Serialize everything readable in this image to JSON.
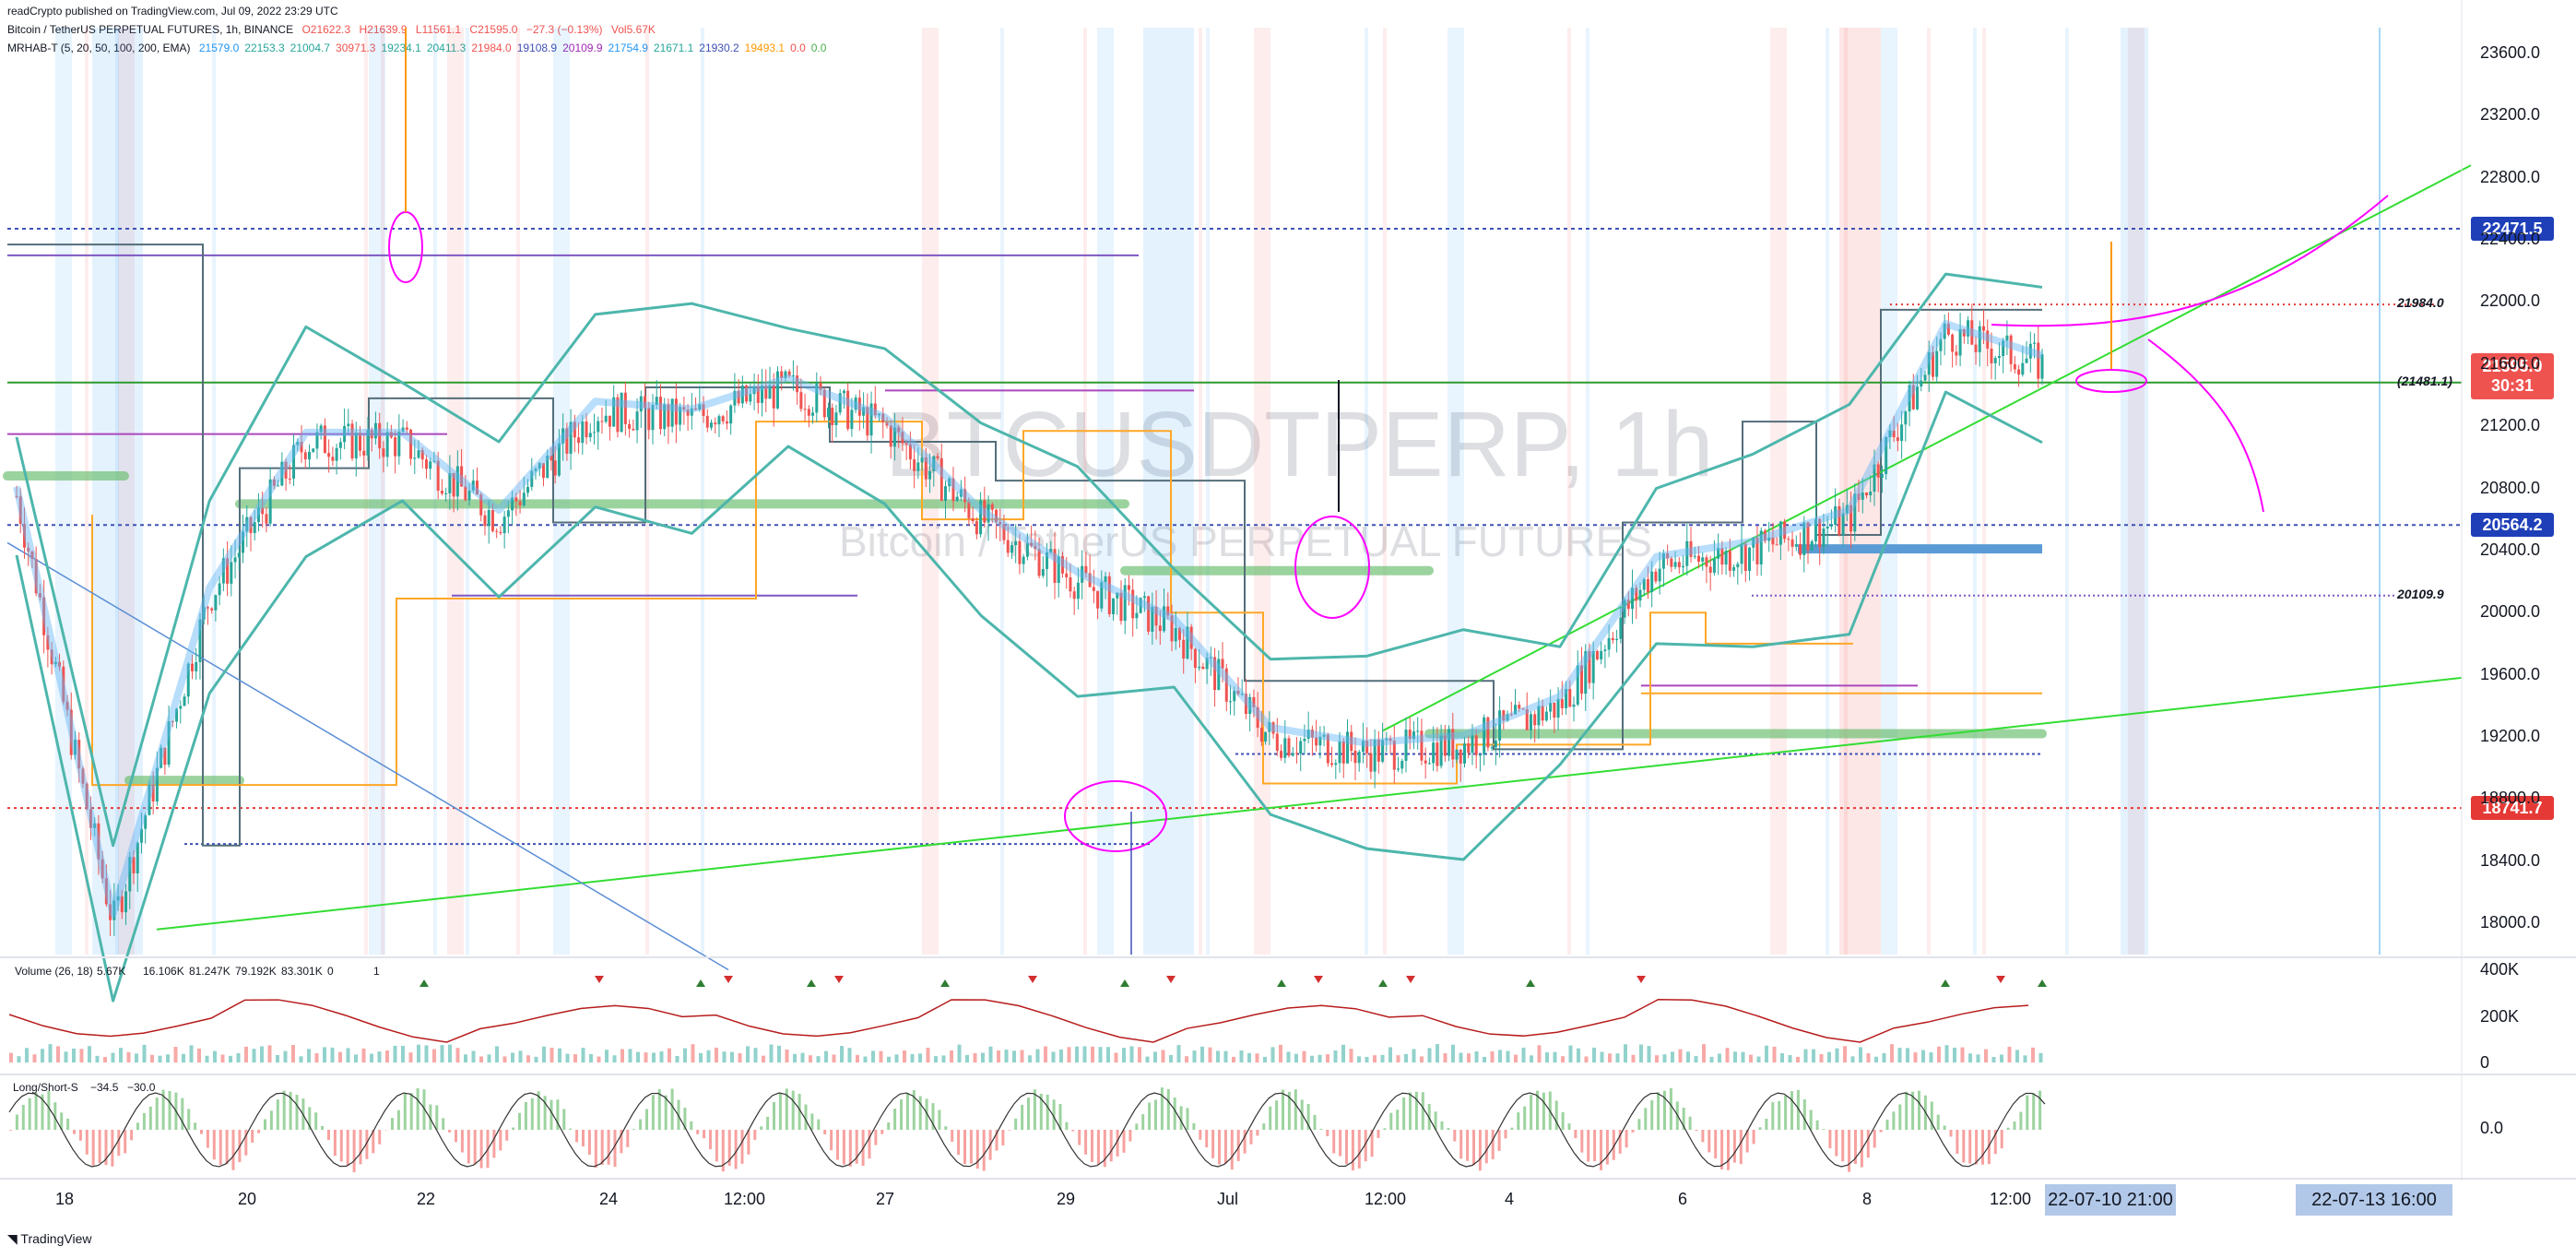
{
  "header": {
    "publisher_line": "readCrypto published on TradingView.com, Jul 09, 2022 23:29 UTC",
    "symbol_line": "Bitcoin / TetherUS PERPETUAL FUTURES, 1h, BINANCE",
    "ohlc": {
      "open": "O21622.3",
      "high": "H21639.9",
      "low": "L11561.1",
      "close": "C21595.0",
      "change": "−27.3 (−0.13%)",
      "volume": "Vol5.67K"
    },
    "mrhab_label": "MRHAB-T (5, 20, 50, 100, 200, EMA)",
    "mrhab_values": [
      "21579.0",
      "22153.3",
      "21004.7",
      "30971.3",
      "19234.1",
      "20411.3",
      "21984.0",
      "19108.9",
      "20109.9",
      "21754.9",
      "21671.1",
      "21930.2",
      "19493.1",
      "0.0",
      "0.0"
    ]
  },
  "watermark": {
    "symbol": "BTCUSDTPERP, 1h",
    "name": "Bitcoin / TetherUS PERPETUAL FUTURES"
  },
  "price_axis": {
    "ticks": [
      "23600.0",
      "23200.0",
      "22800.0",
      "22400.0",
      "22000.0",
      "21600.0",
      "21200.0",
      "20800.0",
      "20400.0",
      "20000.0",
      "19600.0",
      "19200.0",
      "18800.0",
      "18400.0",
      "18000.0"
    ],
    "tags": [
      {
        "label": "22471.5",
        "value": 22471.5,
        "color": "#1e3fb8"
      },
      {
        "label": "21595.0",
        "sub": "30:31",
        "value": 21595.0,
        "color": "#ef5350"
      },
      {
        "label": "20564.2",
        "value": 20564.2,
        "color": "#1e3fb8"
      },
      {
        "label": "18741.7",
        "value": 18741.7,
        "color": "#e53935"
      }
    ],
    "line_labels": [
      {
        "label": "21984.0",
        "value": 21984.0
      },
      {
        "label": "20109.9",
        "value": 20109.9
      },
      {
        "label": "(21481.1)",
        "value": 21481.1
      }
    ]
  },
  "time_axis": {
    "ticks": [
      "18",
      "20",
      "22",
      "24",
      "12:00",
      "27",
      "29",
      "Jul",
      "12:00",
      "4",
      "6",
      "8",
      "12:00"
    ],
    "chips": [
      "22-07-10   21:00",
      "22-07-13   16:00"
    ]
  },
  "volume_pane": {
    "label": "Volume (26, 18)",
    "values_label": [
      "5.67K",
      "16.106K",
      "81.247K",
      "79.192K",
      "83.301K",
      "0",
      "1"
    ],
    "ticks": [
      "400K",
      "200K",
      "0"
    ]
  },
  "ls_pane": {
    "label": "Long/Short-S",
    "values_label": [
      "−34.5",
      "−30.0"
    ],
    "ticks": [
      "0.0"
    ]
  },
  "footer": {
    "logo": "TradingView"
  },
  "colors": {
    "up": "#26a69a",
    "down": "#ef5350",
    "bollinger": "#4db6ac",
    "trend": "#33dd33",
    "annotation": "#ff00ff",
    "level_blue": "#3f51b5",
    "level_red": "#e53935",
    "level_purple": "#7e57c2"
  },
  "chart_data": {
    "type": "line",
    "title": "BTCUSDTPERP, 1h",
    "xlabel": "",
    "ylabel": "",
    "ylim": [
      17800,
      23800
    ],
    "x": [
      "18",
      "19",
      "20",
      "21",
      "22",
      "23",
      "24",
      "25",
      "26",
      "27",
      "28",
      "29",
      "30",
      "Jul 1",
      "2",
      "3",
      "4",
      "5",
      "6",
      "7",
      "8",
      "9"
    ],
    "series": [
      {
        "name": "",
        "values": [
          20750,
          18000,
          20100,
          21100,
          21100,
          20600,
          21300,
          21250,
          21450,
          21200,
          20600,
          20200,
          19900,
          19200,
          19100,
          19150,
          19400,
          20300,
          20400,
          20600,
          21800,
          21595
        ]
      }
    ],
    "levels": [
      22471.5,
      21984.0,
      21481.1,
      20564.2,
      20109.9,
      18741.7
    ]
  }
}
